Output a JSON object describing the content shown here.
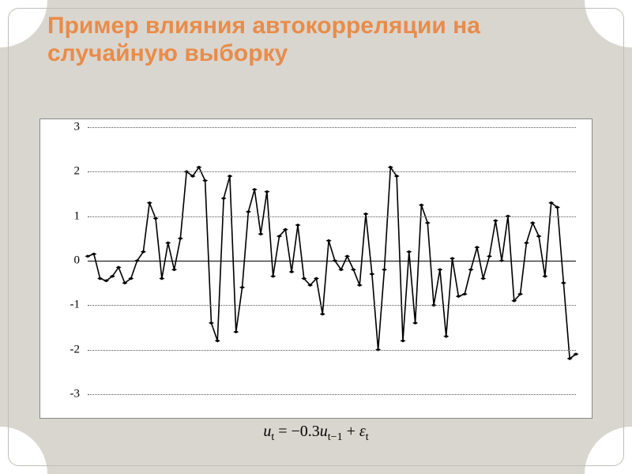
{
  "title": {
    "text": "Пример влияния автокорреляции на случайную выборку",
    "color": "#e98c4a",
    "fontsize": 30
  },
  "slide": {
    "background_color": "#d9d6cf",
    "corner_color": "#ffffff",
    "border_color": "#c0beb8"
  },
  "chart": {
    "type": "line",
    "background_color": "#ffffff",
    "border_color": "#888888",
    "ylim": [
      -3,
      3
    ],
    "yticks": [
      -3,
      -2,
      -1,
      0,
      1,
      2,
      3
    ],
    "ytick_labels": [
      "-3",
      "-2",
      "-1",
      "0",
      "1",
      "2",
      "3"
    ],
    "ytick_fontsize": 15,
    "grid_color": "#555555",
    "grid_style": "dotted",
    "line_color": "#000000",
    "line_width": 1,
    "marker": "diamond",
    "marker_size": 5,
    "marker_color": "#000000",
    "x_count": 80,
    "values": [
      0.1,
      0.15,
      -0.4,
      -0.45,
      -0.35,
      -0.15,
      -0.5,
      -0.4,
      0.0,
      0.2,
      1.3,
      0.95,
      -0.4,
      0.4,
      -0.2,
      0.5,
      2.0,
      1.9,
      2.1,
      1.8,
      -1.4,
      -1.8,
      1.4,
      1.9,
      -1.6,
      -0.6,
      1.1,
      1.6,
      0.6,
      1.55,
      -0.35,
      0.55,
      0.7,
      -0.25,
      0.8,
      -0.4,
      -0.55,
      -0.4,
      -1.2,
      0.45,
      0.0,
      -0.2,
      0.1,
      -0.2,
      -0.55,
      1.05,
      -0.3,
      -2.0,
      -0.2,
      2.1,
      1.9,
      -1.8,
      0.2,
      -1.4,
      1.25,
      0.85,
      -1.0,
      -0.2,
      -1.7,
      0.05,
      -0.8,
      -0.75,
      -0.2,
      0.3,
      -0.4,
      0.1,
      0.9,
      0.0,
      1.0,
      -0.9,
      -0.75,
      0.4,
      0.85,
      0.55,
      -0.35,
      1.3,
      1.2,
      -0.5,
      -2.2,
      -2.1
    ]
  },
  "formula": {
    "var": "u",
    "sub1": "t",
    "eq": " = ",
    "coef": "−0.3",
    "sub2": "t−1",
    "plus": " + ",
    "eps": "ε",
    "sub3": "t",
    "fontsize": 20
  }
}
